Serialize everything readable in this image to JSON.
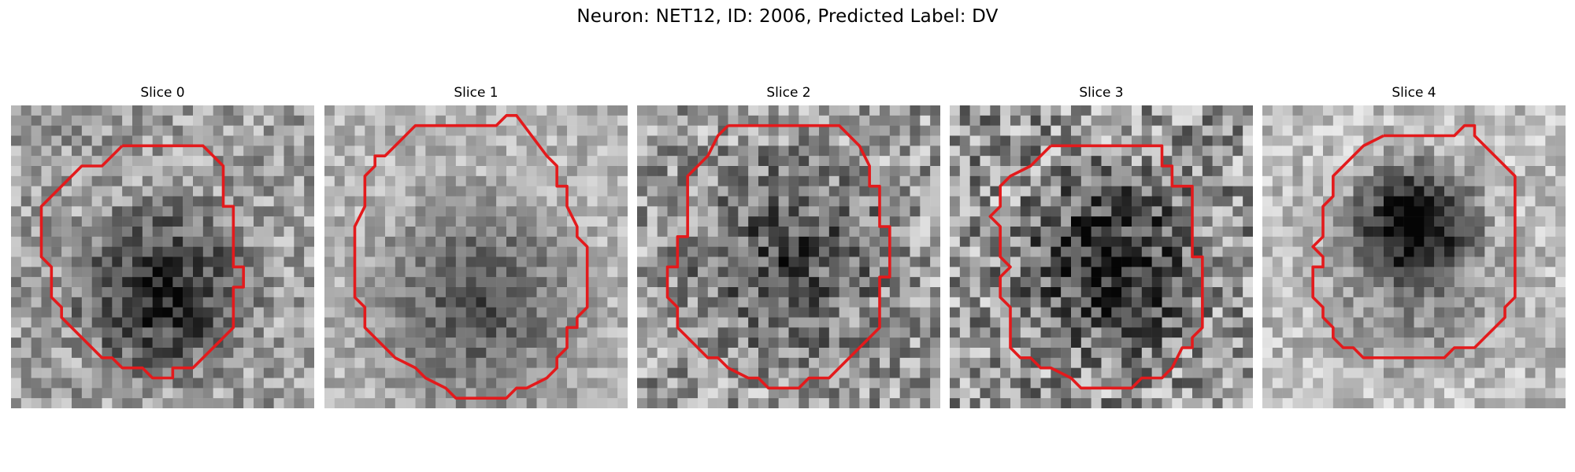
{
  "figure": {
    "title": "Neuron: NET12, ID: 2006, Predicted Label: DV",
    "grid_size": 30,
    "contour_color": "#e31a1c",
    "slices": [
      {
        "title": "Slice 0",
        "contour": [
          [
            11,
            4
          ],
          [
            19,
            4
          ],
          [
            21,
            6
          ],
          [
            21,
            10
          ],
          [
            22,
            10
          ],
          [
            22,
            16
          ],
          [
            23,
            16
          ],
          [
            23,
            18
          ],
          [
            22,
            18
          ],
          [
            22,
            22
          ],
          [
            18,
            26
          ],
          [
            16,
            26
          ],
          [
            16,
            27
          ],
          [
            14,
            27
          ],
          [
            13,
            26
          ],
          [
            11,
            26
          ],
          [
            10,
            25
          ],
          [
            9,
            25
          ],
          [
            5,
            21
          ],
          [
            5,
            20
          ],
          [
            4,
            19
          ],
          [
            4,
            16
          ],
          [
            3,
            15
          ],
          [
            3,
            10
          ],
          [
            7,
            6
          ],
          [
            9,
            6
          ],
          [
            11,
            4
          ]
        ]
      },
      {
        "title": "Slice 1",
        "contour": [
          [
            12,
            2
          ],
          [
            17,
            2
          ],
          [
            18,
            1
          ],
          [
            19,
            1
          ],
          [
            22,
            5
          ],
          [
            23,
            6
          ],
          [
            23,
            8
          ],
          [
            24,
            8
          ],
          [
            24,
            10
          ],
          [
            25,
            12
          ],
          [
            25,
            13
          ],
          [
            26,
            14
          ],
          [
            26,
            20
          ],
          [
            25,
            21
          ],
          [
            25,
            22
          ],
          [
            24,
            22
          ],
          [
            24,
            24
          ],
          [
            23,
            25
          ],
          [
            23,
            26
          ],
          [
            22,
            27
          ],
          [
            20,
            28
          ],
          [
            19,
            28
          ],
          [
            18,
            29
          ],
          [
            16,
            29
          ],
          [
            15,
            29
          ],
          [
            13,
            29
          ],
          [
            12,
            28
          ],
          [
            10,
            27
          ],
          [
            9,
            26
          ],
          [
            7,
            25
          ],
          [
            6,
            24
          ],
          [
            4,
            22
          ],
          [
            4,
            20
          ],
          [
            3,
            19
          ],
          [
            3,
            12
          ],
          [
            4,
            10
          ],
          [
            4,
            7
          ],
          [
            5,
            6
          ],
          [
            5,
            5
          ],
          [
            6,
            5
          ],
          [
            7,
            4
          ],
          [
            8,
            3
          ],
          [
            9,
            2
          ],
          [
            12,
            2
          ]
        ]
      },
      {
        "title": "Slice 2",
        "contour": [
          [
            9,
            2
          ],
          [
            20,
            2
          ],
          [
            22,
            4
          ],
          [
            23,
            6
          ],
          [
            23,
            8
          ],
          [
            24,
            8
          ],
          [
            24,
            12
          ],
          [
            25,
            12
          ],
          [
            25,
            17
          ],
          [
            24,
            17
          ],
          [
            24,
            22
          ],
          [
            22,
            24
          ],
          [
            20,
            26
          ],
          [
            19,
            27
          ],
          [
            17,
            27
          ],
          [
            16,
            28
          ],
          [
            13,
            28
          ],
          [
            12,
            27
          ],
          [
            11,
            27
          ],
          [
            9,
            26
          ],
          [
            8,
            25
          ],
          [
            7,
            25
          ],
          [
            5,
            23
          ],
          [
            4,
            22
          ],
          [
            4,
            20
          ],
          [
            3,
            19
          ],
          [
            3,
            16
          ],
          [
            4,
            16
          ],
          [
            4,
            13
          ],
          [
            5,
            13
          ],
          [
            5,
            7
          ],
          [
            6,
            6
          ],
          [
            7,
            5
          ],
          [
            8,
            3
          ],
          [
            9,
            2
          ]
        ]
      },
      {
        "title": "Slice 3",
        "contour": [
          [
            10,
            4
          ],
          [
            21,
            4
          ],
          [
            21,
            6
          ],
          [
            22,
            6
          ],
          [
            22,
            8
          ],
          [
            24,
            8
          ],
          [
            24,
            15
          ],
          [
            25,
            15
          ],
          [
            25,
            22
          ],
          [
            24,
            23
          ],
          [
            24,
            24
          ],
          [
            23,
            24
          ],
          [
            22,
            26
          ],
          [
            21,
            27
          ],
          [
            19,
            27
          ],
          [
            18,
            28
          ],
          [
            13,
            28
          ],
          [
            12,
            27
          ],
          [
            10,
            26
          ],
          [
            9,
            26
          ],
          [
            8,
            25
          ],
          [
            7,
            25
          ],
          [
            6,
            24
          ],
          [
            6,
            20
          ],
          [
            5,
            19
          ],
          [
            5,
            17
          ],
          [
            6,
            16
          ],
          [
            5,
            15
          ],
          [
            5,
            12
          ],
          [
            4,
            11
          ],
          [
            5,
            10
          ],
          [
            5,
            8
          ],
          [
            6,
            7
          ],
          [
            8,
            6
          ],
          [
            9,
            5
          ],
          [
            10,
            4
          ]
        ]
      },
      {
        "title": "Slice 4",
        "contour": [
          [
            12,
            3
          ],
          [
            19,
            3
          ],
          [
            20,
            2
          ],
          [
            21,
            2
          ],
          [
            21,
            3
          ],
          [
            22,
            4
          ],
          [
            24,
            6
          ],
          [
            25,
            7
          ],
          [
            25,
            19
          ],
          [
            24,
            20
          ],
          [
            24,
            21
          ],
          [
            23,
            22
          ],
          [
            22,
            23
          ],
          [
            21,
            24
          ],
          [
            19,
            24
          ],
          [
            18,
            25
          ],
          [
            16,
            25
          ],
          [
            15,
            25
          ],
          [
            10,
            25
          ],
          [
            9,
            24
          ],
          [
            8,
            24
          ],
          [
            7,
            23
          ],
          [
            7,
            22
          ],
          [
            6,
            21
          ],
          [
            6,
            20
          ],
          [
            5,
            19
          ],
          [
            5,
            16
          ],
          [
            6,
            16
          ],
          [
            6,
            15
          ],
          [
            5,
            14
          ],
          [
            6,
            13
          ],
          [
            6,
            10
          ],
          [
            7,
            9
          ],
          [
            7,
            7
          ],
          [
            8,
            6
          ],
          [
            9,
            5
          ],
          [
            10,
            4
          ],
          [
            12,
            3
          ]
        ]
      }
    ]
  }
}
